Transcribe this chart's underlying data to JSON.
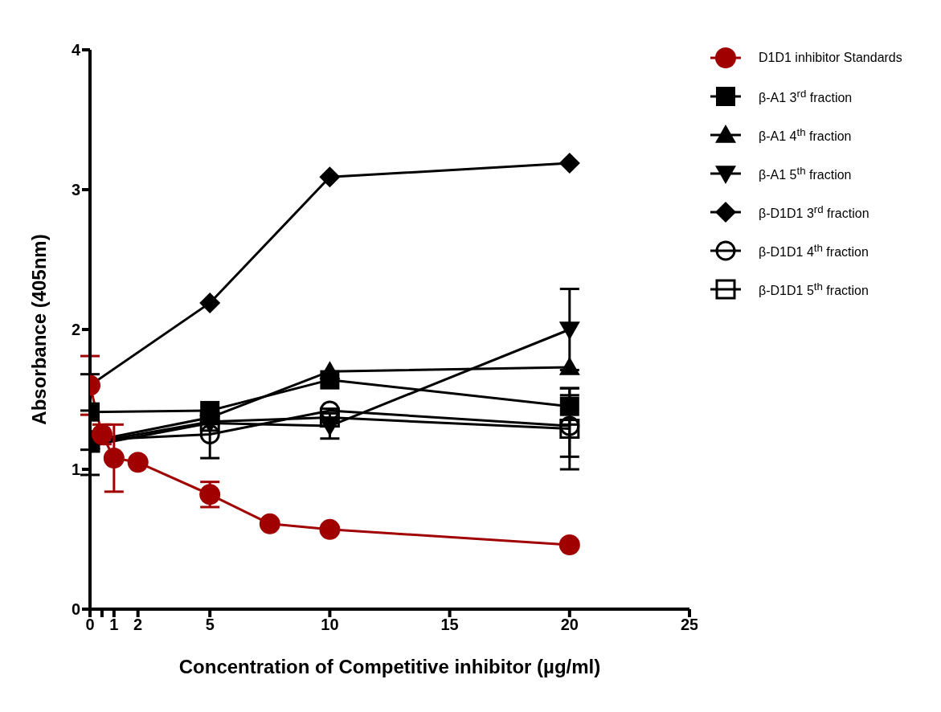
{
  "chart_data": {
    "type": "line",
    "xlabel": "Concentration of Competitive inhibitor (µg/ml)",
    "ylabel": "Absorbance (405nm)",
    "xlim": [
      0,
      25
    ],
    "xticks": [
      0,
      {
        "value": 0.5,
        "label": null
      },
      1,
      2,
      5,
      10,
      15,
      20,
      25
    ],
    "ylim": [
      0,
      4
    ],
    "yticks": [
      0,
      1,
      2,
      3,
      4
    ],
    "grid": false,
    "legend": "top right",
    "line_style": "solid",
    "series": [
      {
        "name": "D1D1 inhibitor Standards",
        "color": "#a00000",
        "marker": "circle",
        "x": [
          0,
          0.5,
          1,
          2,
          5,
          7.5,
          10,
          20
        ],
        "values": [
          1.6,
          1.25,
          1.08,
          1.05,
          0.82,
          0.61,
          0.57,
          0.46
        ],
        "errors": [
          0.21,
          0.07,
          0.24,
          null,
          0.09,
          null,
          null,
          null
        ]
      },
      {
        "name": "β-A1 3$^{rd}$ fraction",
        "color": "#000000",
        "marker": "square",
        "x": [
          0,
          5,
          10,
          20
        ],
        "values": [
          1.41,
          1.42,
          1.64,
          1.45
        ],
        "errors": [
          0.27,
          null,
          null,
          0.13
        ]
      },
      {
        "name": "β-A1 4$^{th}$ fraction",
        "color": "#000000",
        "marker": "triangle",
        "x": [
          0,
          5,
          10,
          20
        ],
        "values": [
          1.2,
          1.37,
          1.7,
          1.73
        ],
        "errors": [
          null,
          null,
          null,
          null
        ]
      },
      {
        "name": "β-A1 5$^{th}$ fraction",
        "color": "#000000",
        "marker": "triangle-down",
        "x": [
          0,
          5,
          10,
          20
        ],
        "values": [
          1.17,
          1.33,
          1.31,
          2.0
        ],
        "errors": [
          null,
          null,
          0.09,
          0.29
        ]
      },
      {
        "name": "β-D1D1 3$^{rd}$ fraction",
        "color": "#000000",
        "marker": "diamond",
        "x": [
          0,
          5,
          10,
          20
        ],
        "values": [
          1.6,
          2.19,
          3.09,
          3.19
        ],
        "errors": [
          null,
          null,
          null,
          null
        ]
      },
      {
        "name": "β-D1D1 4$^{th}$ fraction",
        "color": "#000000",
        "marker": "circle-open",
        "x": [
          0,
          5,
          10,
          20
        ],
        "values": [
          1.21,
          1.25,
          1.42,
          1.31
        ],
        "errors": [
          null,
          0.17,
          null,
          0.22
        ]
      },
      {
        "name": "β-D1D1 5$^{th}$ fraction",
        "color": "#000000",
        "marker": "square-open",
        "x": [
          0,
          5,
          10,
          20
        ],
        "values": [
          1.19,
          1.34,
          1.37,
          1.29
        ],
        "errors": [
          0.23,
          null,
          null,
          0.29
        ]
      }
    ]
  }
}
